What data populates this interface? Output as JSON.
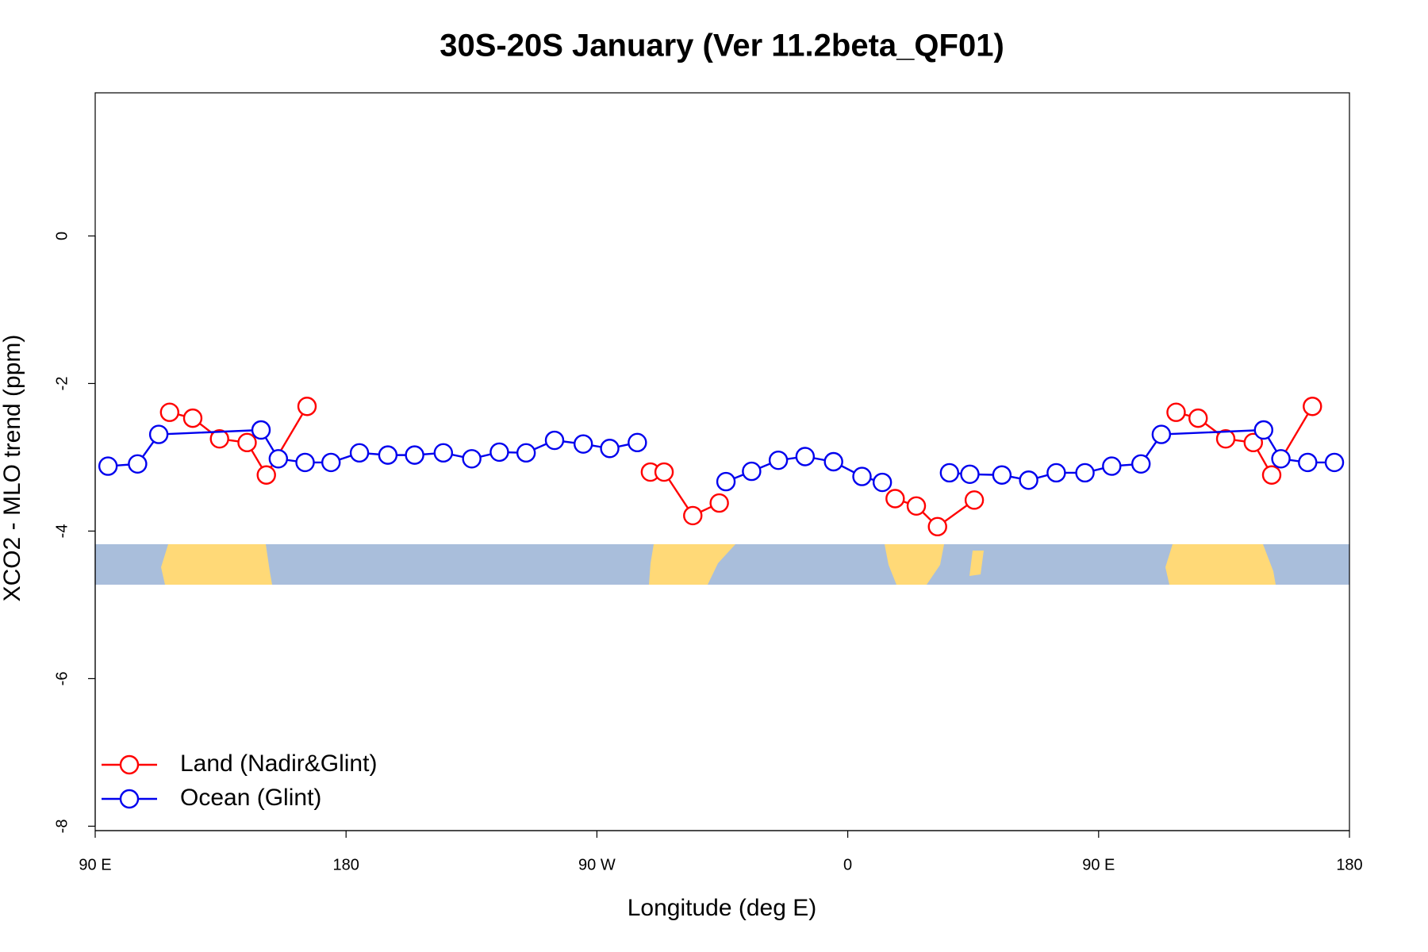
{
  "chart_data": {
    "type": "line",
    "title": "30S-20S January (Ver 11.2beta_QF01)",
    "xlabel": "Longitude (deg E)",
    "ylabel": "XCO2 - MLO trend (ppm)",
    "xlim": [
      90,
      540
    ],
    "ylim": [
      -8.06,
      1.94
    ],
    "xticks": [
      {
        "value": 90,
        "label": "90 E"
      },
      180,
      {
        "value": 270,
        "label": "90 W"
      },
      {
        "value": 360,
        "label": "0"
      },
      {
        "value": 450,
        "label": "90 E"
      },
      {
        "value": 540,
        "label": "180"
      }
    ],
    "yticks": [
      0,
      -2,
      -4,
      -6,
      -8
    ],
    "legend": "bottomleft",
    "series": [
      {
        "name": "Land (Nadir&Glint)",
        "color": "#ff0000",
        "x": [
          116.7,
          125.0,
          134.6,
          144.5,
          151.4,
          166.0,
          null,
          289.2,
          294.1,
          304.4,
          313.9,
          null,
          377.0,
          384.6,
          392.2,
          405.4,
          null,
          477.8,
          485.7,
          495.6,
          505.5,
          512.1,
          526.7
        ],
        "values": [
          -2.39,
          -2.47,
          -2.75,
          -2.8,
          -3.24,
          -2.31,
          null,
          -3.2,
          -3.2,
          -3.79,
          -3.62,
          null,
          -3.56,
          -3.66,
          -3.94,
          -3.58,
          null,
          -2.39,
          -2.47,
          -2.75,
          -2.8,
          -3.24,
          -2.31
        ]
      },
      {
        "name": "Ocean (Glint)",
        "color": "#0000ee",
        "x": [
          94.6,
          105.2,
          112.8,
          149.5,
          155.7,
          165.3,
          174.6,
          184.8,
          195.0,
          204.6,
          214.9,
          225.1,
          235.0,
          244.6,
          254.8,
          265.1,
          274.6,
          284.5,
          null,
          316.3,
          325.5,
          335.1,
          344.7,
          354.9,
          365.1,
          372.4,
          null,
          396.5,
          403.8,
          415.3,
          424.9,
          434.8,
          445.1,
          454.7,
          465.2,
          472.5,
          509.2,
          515.4,
          525.0,
          534.6
        ],
        "values": [
          -3.12,
          -3.09,
          -2.69,
          -2.63,
          -3.02,
          -3.07,
          -3.07,
          -2.94,
          -2.97,
          -2.97,
          -2.94,
          -3.02,
          -2.93,
          -2.94,
          -2.77,
          -2.82,
          -2.88,
          -2.8,
          null,
          -3.33,
          -3.19,
          -3.04,
          -2.99,
          -3.06,
          -3.26,
          -3.34,
          null,
          -3.21,
          -3.23,
          -3.24,
          -3.31,
          -3.21,
          -3.21,
          -3.12,
          -3.09,
          -2.69,
          -2.63,
          -3.02,
          -3.07,
          -3.07
        ]
      }
    ]
  }
}
